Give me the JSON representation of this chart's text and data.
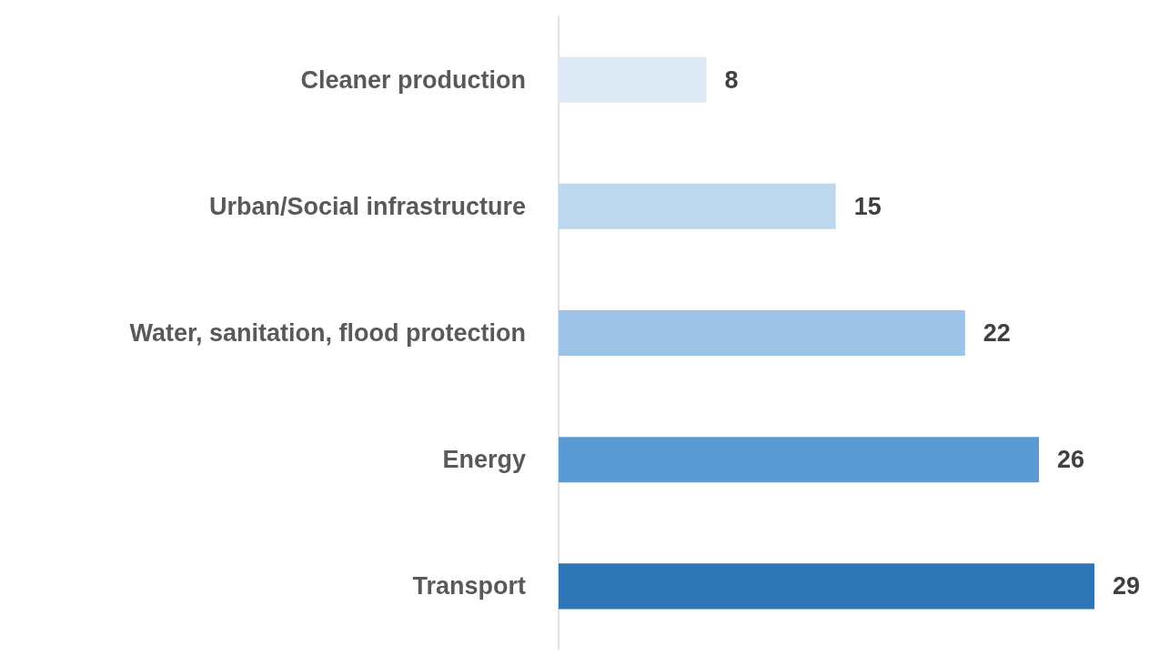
{
  "chart_data": {
    "type": "bar",
    "orientation": "horizontal",
    "categories": [
      "Cleaner production",
      "Urban/Social infrastructure",
      "Water, sanitation, flood protection",
      "Energy",
      "Transport"
    ],
    "values": [
      8,
      15,
      22,
      26,
      29
    ],
    "colors": [
      "#deebf7",
      "#bdd7ee",
      "#9dc3e6",
      "#5b9bd5",
      "#2e75b6"
    ],
    "data_labels": true
  }
}
